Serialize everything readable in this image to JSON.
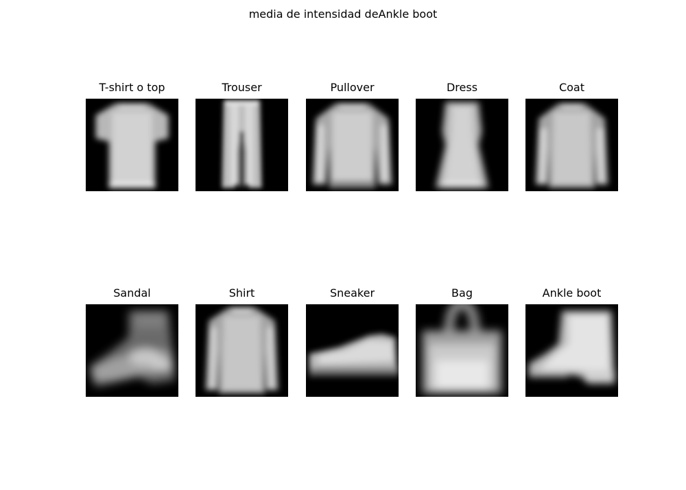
{
  "chart_data": {
    "type": "heatmap",
    "title": "media de intensidad deAnkle boot",
    "colormap": "gray",
    "axes": "off",
    "grid": false,
    "layout": "2 rows x 5 columns of mean-intensity images",
    "panels": [
      {
        "label": "T-shirt o top",
        "icon": "tshirt"
      },
      {
        "label": "Trouser",
        "icon": "trouser"
      },
      {
        "label": "Pullover",
        "icon": "pullover"
      },
      {
        "label": "Dress",
        "icon": "dress"
      },
      {
        "label": "Coat",
        "icon": "coat"
      },
      {
        "label": "Sandal",
        "icon": "sandal"
      },
      {
        "label": "Shirt",
        "icon": "shirt"
      },
      {
        "label": "Sneaker",
        "icon": "sneaker"
      },
      {
        "label": "Bag",
        "icon": "bag"
      },
      {
        "label": "Ankle boot",
        "icon": "ankle-boot"
      }
    ]
  }
}
